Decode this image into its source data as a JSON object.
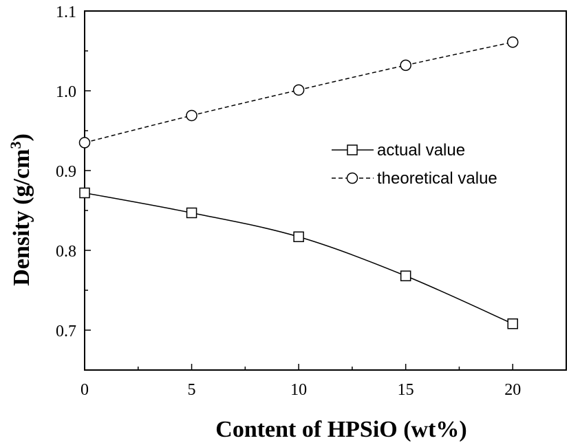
{
  "chart_data": {
    "type": "line",
    "xlabel": "Content of HPSiO (wt%)",
    "ylabel_main": "Density (g/cm",
    "ylabel_sup": "3",
    "ylabel_close": ")",
    "xlim": [
      0,
      22.5
    ],
    "ylim": [
      0.65,
      1.1
    ],
    "xticks": [
      0,
      5,
      10,
      15,
      20
    ],
    "xtick_labels": [
      "0",
      "5",
      "10",
      "15",
      "20"
    ],
    "x_minor_ticks": [
      2.5,
      7.5,
      12.5,
      17.5
    ],
    "yticks": [
      0.7,
      0.8,
      0.9,
      1.0,
      1.1
    ],
    "ytick_labels": [
      "0.7",
      "0.8",
      "0.9",
      "1.0",
      "1.1"
    ],
    "y_minor_ticks": [
      0.75,
      0.85,
      0.95,
      1.05
    ],
    "grid": false,
    "legend_position": "right-middle",
    "series": [
      {
        "name": "actual value",
        "marker": "square",
        "line_style": "solid",
        "x": [
          0,
          5,
          10,
          15,
          20
        ],
        "y": [
          0.872,
          0.847,
          0.817,
          0.768,
          0.708
        ]
      },
      {
        "name": "theoretical value",
        "marker": "circle",
        "line_style": "dashed",
        "x": [
          0,
          5,
          10,
          15,
          20
        ],
        "y": [
          0.935,
          0.969,
          1.001,
          1.032,
          1.061
        ]
      }
    ]
  }
}
